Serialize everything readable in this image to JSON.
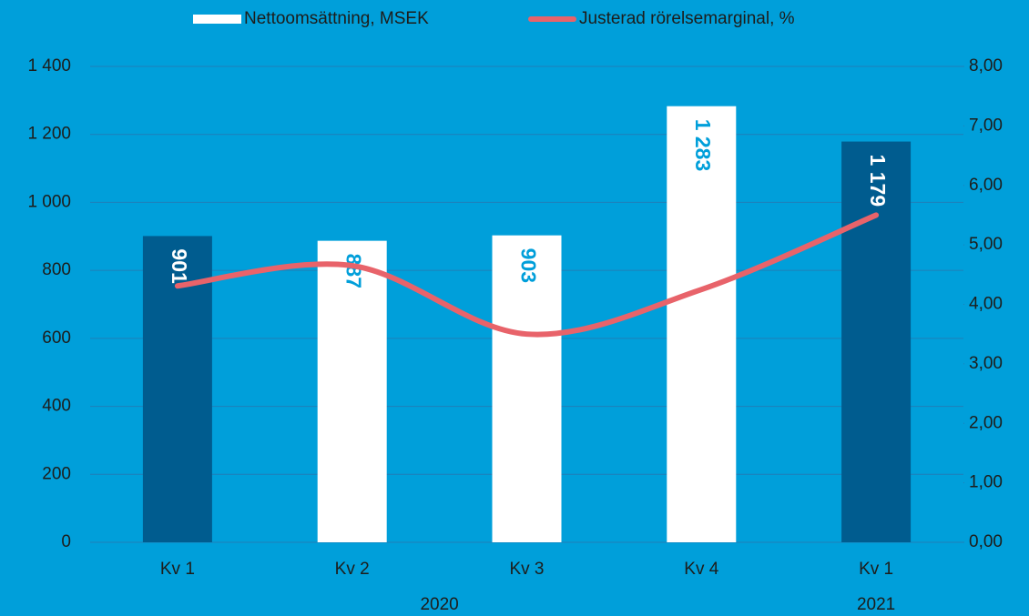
{
  "chart_data": {
    "type": "bar-line",
    "categories": [
      "Kv 1",
      "Kv 2",
      "Kv 3",
      "Kv 4",
      "Kv 1"
    ],
    "groups": [
      {
        "label": "2020",
        "count": 4
      },
      {
        "label": "2021",
        "count": 1
      }
    ],
    "series": [
      {
        "name": "Nettoomsättning, MSEK",
        "type": "bar",
        "color": "#ffffff",
        "colors": [
          "#005c8f",
          "#ffffff",
          "#ffffff",
          "#ffffff",
          "#005c8f"
        ],
        "values": [
          901,
          887,
          903,
          1283,
          1179
        ],
        "value_labels": [
          "901",
          "887",
          "903",
          "1 283",
          "1 179"
        ]
      },
      {
        "name": "Justerad rörelsemarginal, %",
        "type": "line",
        "axis": "y2",
        "color": "#e8636a",
        "values": [
          4.31,
          4.65,
          3.5,
          4.25,
          5.5
        ]
      }
    ],
    "ylim": [
      0,
      1400
    ],
    "yticks": [
      0,
      200,
      400,
      600,
      800,
      {
        "value": 1000,
        "label": "1 000"
      },
      {
        "value": 1200,
        "label": "1 200"
      },
      {
        "value": 1400,
        "label": "1 400"
      }
    ],
    "y2lim": [
      0,
      8
    ],
    "y2ticks": [
      {
        "value": 0,
        "label": "0,00"
      },
      {
        "value": 1,
        "label": "1,00"
      },
      {
        "value": 2,
        "label": "2,00"
      },
      {
        "value": 3,
        "label": "3,00"
      },
      {
        "value": 4,
        "label": "4,00"
      },
      {
        "value": 5,
        "label": "5,00"
      },
      {
        "value": 6,
        "label": "6,00"
      },
      {
        "value": 7,
        "label": "7,00"
      },
      {
        "value": 8,
        "label": "8,00"
      }
    ],
    "grid": true,
    "legend": "top"
  }
}
